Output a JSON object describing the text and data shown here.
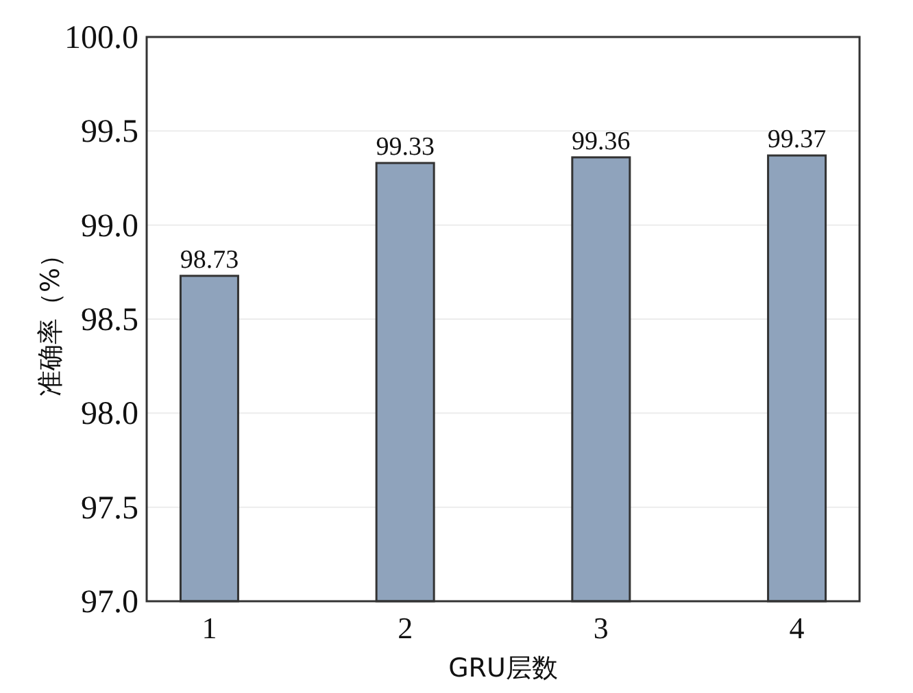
{
  "chart_data": {
    "type": "bar",
    "xlabel": "GRU层数",
    "ylabel": "准确率（%）",
    "categories": [
      "1",
      "2",
      "3",
      "4"
    ],
    "values": [
      98.73,
      99.33,
      99.36,
      99.37
    ],
    "color": "#8fa3bc",
    "ylim": [
      97.0,
      100.0
    ],
    "yticks": [
      {
        "value": 97.0,
        "label": "97.0"
      },
      {
        "value": 97.5,
        "label": "97.5"
      },
      {
        "value": 98.0,
        "label": "98.0"
      },
      {
        "value": 98.5,
        "label": "98.5"
      },
      {
        "value": 99.0,
        "label": "99.0"
      },
      {
        "value": 99.5,
        "label": "99.5"
      },
      {
        "value": 100.0,
        "label": "100.0"
      }
    ],
    "grid": "y",
    "data_labels": true
  }
}
